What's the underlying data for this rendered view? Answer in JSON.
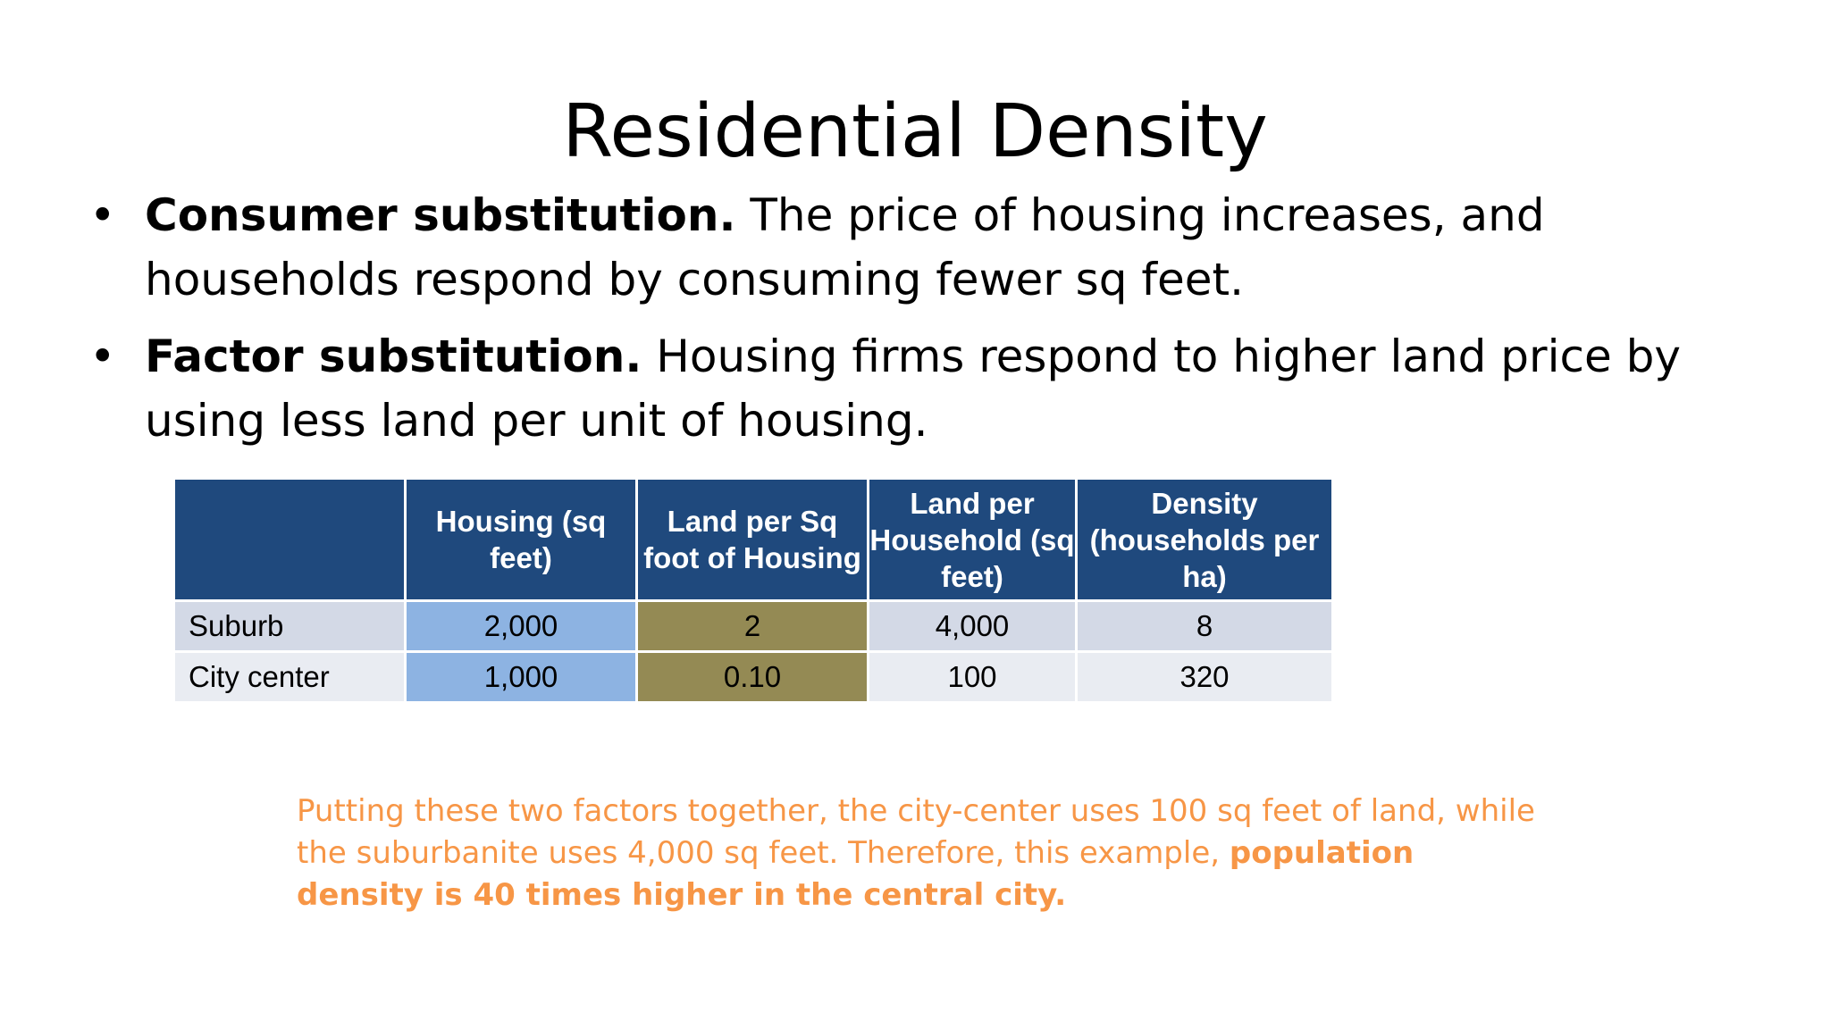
{
  "slide": {
    "title": "Residential Density",
    "bullets": [
      {
        "symbol": "•",
        "lead": "Consumer substitution.",
        "text": " The price of housing increases, and households respond by consuming fewer sq feet."
      },
      {
        "symbol": "•",
        "lead": "Factor substitution.",
        "text": " Housing firms respond to higher land price by using less land per unit of housing."
      }
    ],
    "table": {
      "headers": [
        "",
        "Housing (sq feet)",
        "Land per Sq foot of Housing",
        "Land per Household (sq feet)",
        "Density (households per ha)"
      ],
      "rows": [
        [
          "Suburb",
          "2,000",
          "2",
          "4,000",
          "8"
        ],
        [
          "City center",
          "1,000",
          "0.10",
          "100",
          "320"
        ]
      ]
    },
    "note": {
      "plain": "Putting these two factors together, the city-center uses 100 sq feet of land, while the suburbanite uses 4,000 sq feet. Therefore, this example, ",
      "emphasis": "population density is 40 times higher  in the central city."
    },
    "colors": {
      "header_bg": "#1f497d",
      "housing_col": "#8db3e2",
      "land_sq_col": "#948a54",
      "note_text": "#f79646"
    }
  }
}
